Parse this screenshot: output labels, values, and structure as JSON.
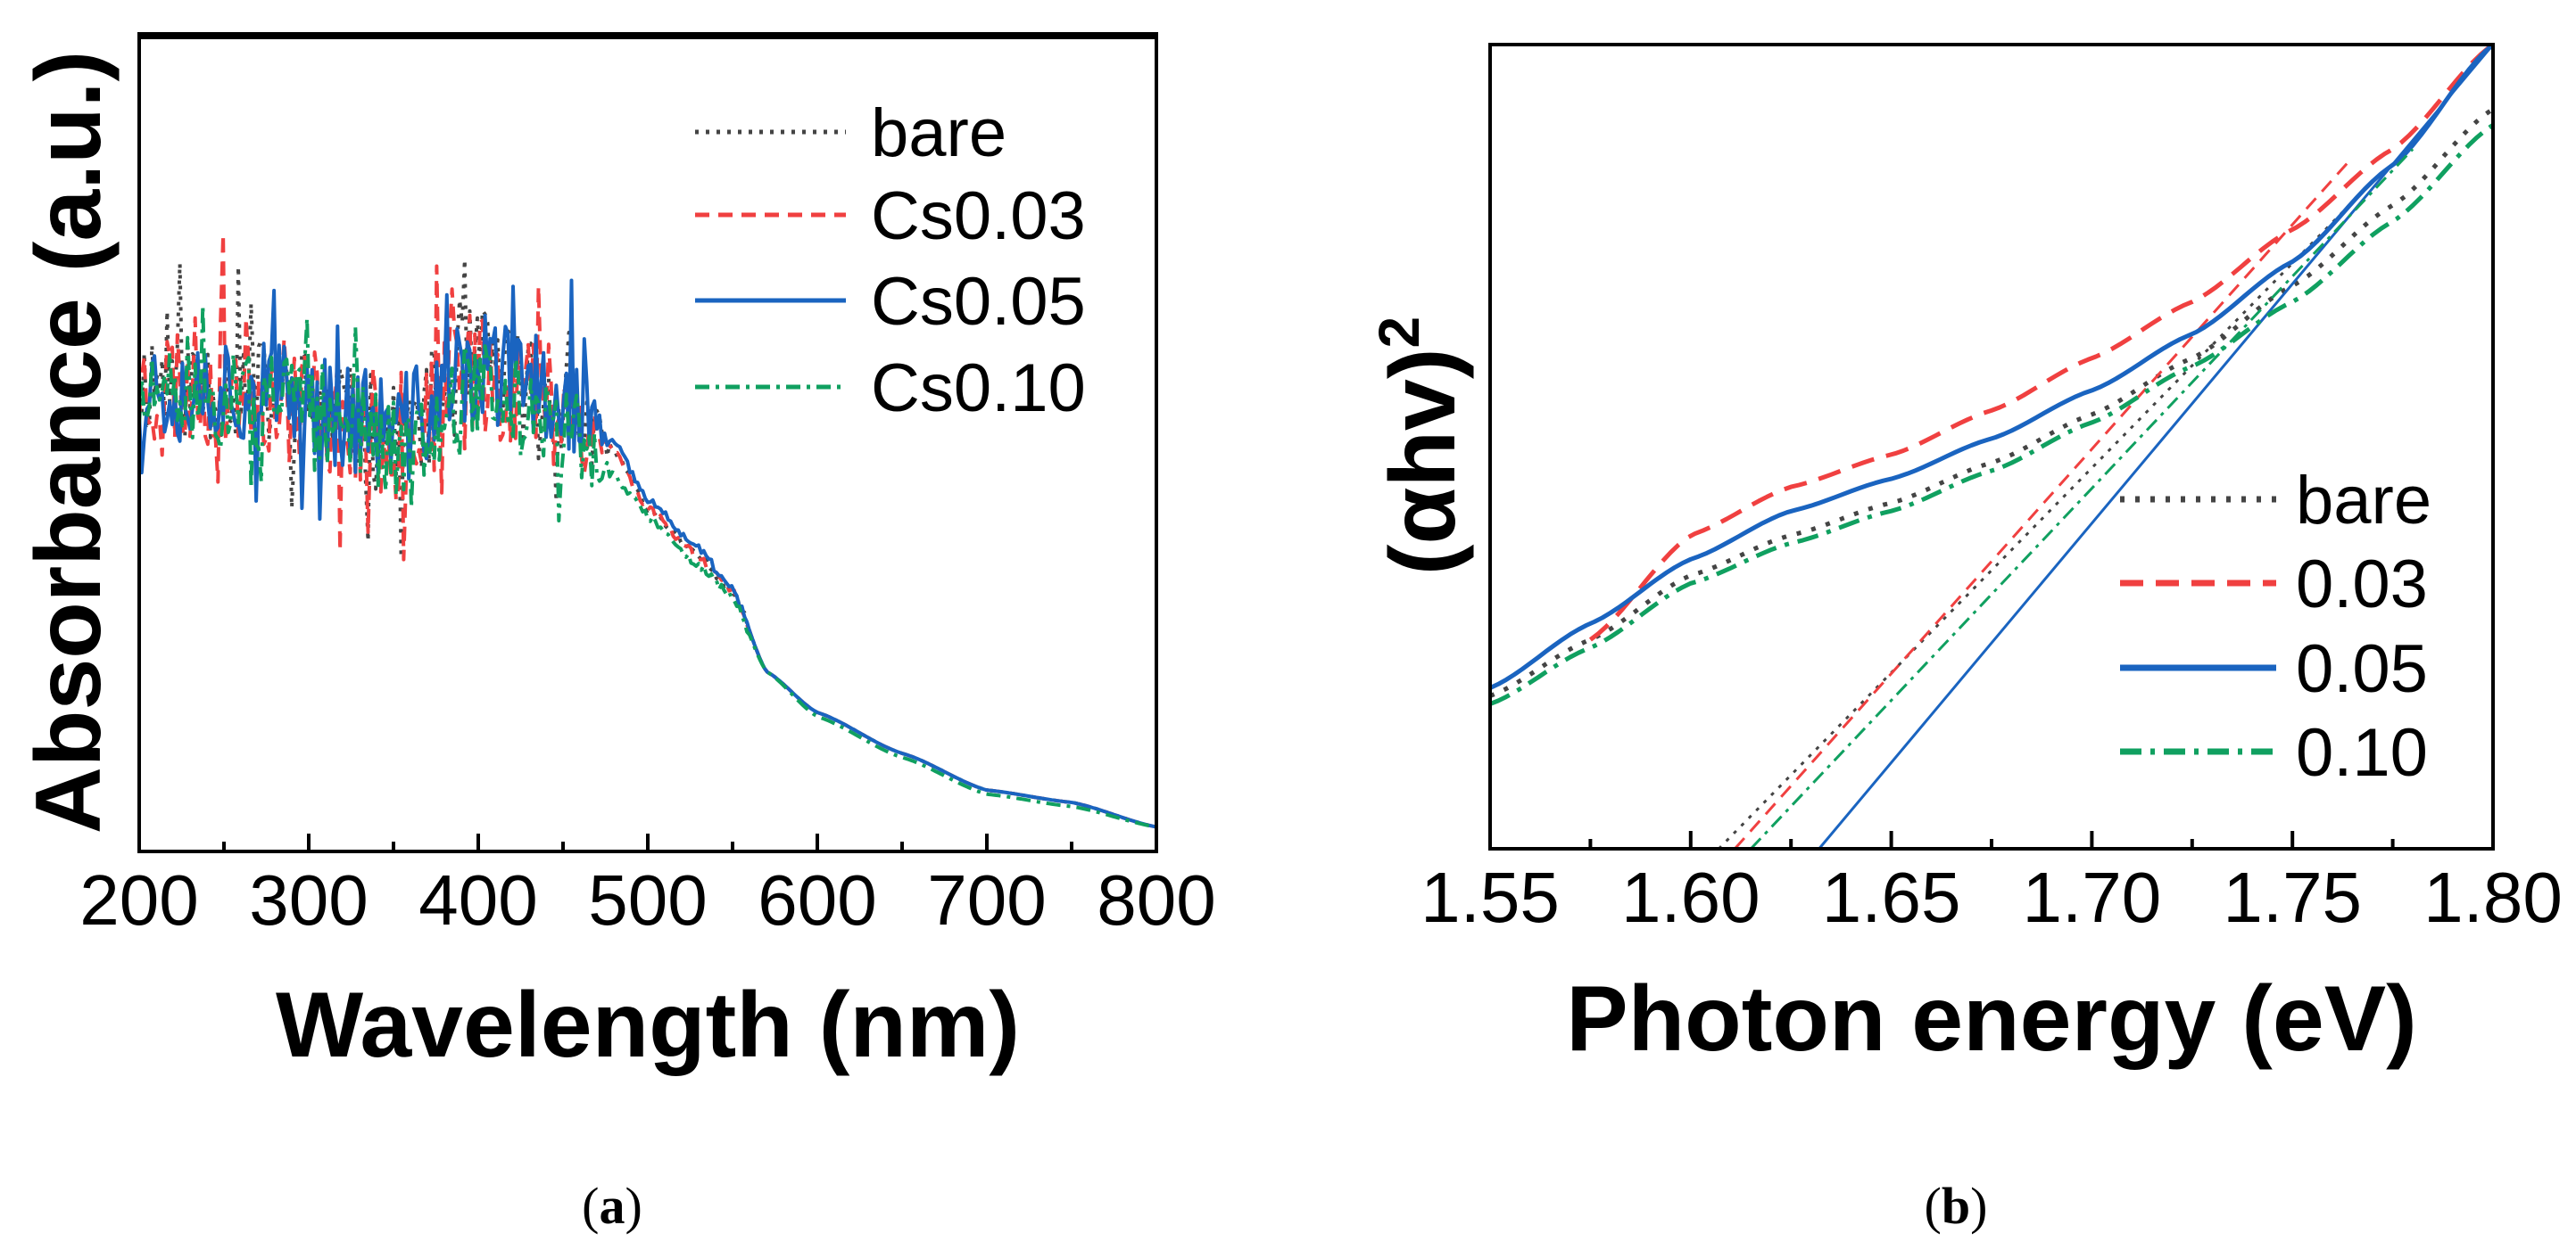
{
  "chart_data": [
    {
      "panel": "a",
      "caption_open": "(",
      "caption_letter": "a",
      "caption_close": ")",
      "type": "line",
      "xlabel": "Wavelength (nm)",
      "ylabel": "Absorbance (a.u.)",
      "xlim": [
        200,
        800
      ],
      "ylim": [
        0,
        1
      ],
      "xticks": [
        "200",
        "300",
        "400",
        "500",
        "600",
        "700",
        "800"
      ],
      "xtick_values": [
        200,
        300,
        400,
        500,
        600,
        700,
        800
      ],
      "minor_xticks": [
        250,
        350,
        450,
        550,
        650,
        750
      ],
      "yticks": [],
      "legend_position": "top-right",
      "noise_until": 480,
      "series": [
        {
          "name": "bare",
          "color": "#444444",
          "style": "dotted",
          "noise_amplitude": 0.07,
          "seed": 11,
          "points": [
            [
              200,
              0.58
            ],
            [
              250,
              0.57
            ],
            [
              300,
              0.55
            ],
            [
              330,
              0.52
            ],
            [
              350,
              0.5
            ],
            [
              400,
              0.6
            ],
            [
              450,
              0.55
            ],
            [
              480,
              0.49
            ],
            [
              500,
              0.42
            ],
            [
              530,
              0.36
            ],
            [
              550,
              0.32
            ],
            [
              570,
              0.22
            ],
            [
              600,
              0.17
            ],
            [
              650,
              0.12
            ],
            [
              700,
              0.075
            ],
            [
              750,
              0.06
            ],
            [
              800,
              0.03
            ]
          ]
        },
        {
          "name": "Cs0.03",
          "color": "#f04040",
          "style": "dashed",
          "noise_amplitude": 0.08,
          "seed": 23,
          "points": [
            [
              200,
              0.57
            ],
            [
              250,
              0.58
            ],
            [
              300,
              0.55
            ],
            [
              330,
              0.52
            ],
            [
              350,
              0.5
            ],
            [
              400,
              0.59
            ],
            [
              450,
              0.55
            ],
            [
              480,
              0.49
            ],
            [
              500,
              0.42
            ],
            [
              530,
              0.36
            ],
            [
              550,
              0.32
            ],
            [
              570,
              0.22
            ],
            [
              600,
              0.17
            ],
            [
              650,
              0.12
            ],
            [
              700,
              0.075
            ],
            [
              750,
              0.06
            ],
            [
              800,
              0.03
            ]
          ]
        },
        {
          "name": "Cs0.05",
          "color": "#1a64c0",
          "style": "solid",
          "noise_amplitude": 0.07,
          "seed": 37,
          "points": [
            [
              200,
              0.57
            ],
            [
              250,
              0.57
            ],
            [
              300,
              0.55
            ],
            [
              330,
              0.53
            ],
            [
              350,
              0.51
            ],
            [
              400,
              0.59
            ],
            [
              450,
              0.56
            ],
            [
              480,
              0.5
            ],
            [
              500,
              0.43
            ],
            [
              530,
              0.37
            ],
            [
              550,
              0.32
            ],
            [
              570,
              0.22
            ],
            [
              600,
              0.17
            ],
            [
              650,
              0.12
            ],
            [
              700,
              0.075
            ],
            [
              750,
              0.06
            ],
            [
              800,
              0.03
            ]
          ]
        },
        {
          "name": "Cs0.10",
          "color": "#10a060",
          "style": "dashdot",
          "noise_amplitude": 0.06,
          "seed": 51,
          "points": [
            [
              200,
              0.55
            ],
            [
              250,
              0.55
            ],
            [
              300,
              0.54
            ],
            [
              330,
              0.52
            ],
            [
              350,
              0.49
            ],
            [
              400,
              0.57
            ],
            [
              450,
              0.51
            ],
            [
              480,
              0.46
            ],
            [
              500,
              0.41
            ],
            [
              530,
              0.35
            ],
            [
              550,
              0.31
            ],
            [
              570,
              0.22
            ],
            [
              600,
              0.165
            ],
            [
              650,
              0.115
            ],
            [
              700,
              0.07
            ],
            [
              750,
              0.055
            ],
            [
              800,
              0.03
            ]
          ]
        }
      ]
    },
    {
      "panel": "b",
      "caption_open": "(",
      "caption_letter": "b",
      "caption_close": ")",
      "type": "line",
      "xlabel": "Photon energy (eV)",
      "ylabel": "(αhv)",
      "ylabel_superscript": "2",
      "xlim": [
        1.55,
        1.8
      ],
      "ylim": [
        0,
        1
      ],
      "xticks": [
        "1.55",
        "1.60",
        "1.65",
        "1.70",
        "1.75",
        "1.80"
      ],
      "xtick_values": [
        1.55,
        1.6,
        1.65,
        1.7,
        1.75,
        1.8
      ],
      "minor_xticks": [
        1.575,
        1.625,
        1.675,
        1.725,
        1.775
      ],
      "yticks": [],
      "legend_position": "bottom-right",
      "series": [
        {
          "name": "bare",
          "color": "#444444",
          "style": "dotted",
          "points": [
            [
              1.55,
              0.19
            ],
            [
              1.575,
              0.26
            ],
            [
              1.6,
              0.34
            ],
            [
              1.625,
              0.39
            ],
            [
              1.65,
              0.43
            ],
            [
              1.675,
              0.48
            ],
            [
              1.7,
              0.54
            ],
            [
              1.725,
              0.61
            ],
            [
              1.75,
              0.7
            ],
            [
              1.775,
              0.8
            ],
            [
              1.8,
              0.92
            ]
          ],
          "fit_line": [
            [
              1.607,
              0
            ],
            [
              1.77,
              0.83
            ]
          ]
        },
        {
          "name": "0.03",
          "color": "#f04040",
          "style": "dashed",
          "points": [
            [
              1.575,
              0.26
            ],
            [
              1.6,
              0.39
            ],
            [
              1.625,
              0.45
            ],
            [
              1.65,
              0.49
            ],
            [
              1.675,
              0.545
            ],
            [
              1.7,
              0.61
            ],
            [
              1.725,
              0.68
            ],
            [
              1.75,
              0.77
            ],
            [
              1.775,
              0.87
            ],
            [
              1.8,
              1.0
            ]
          ],
          "fit_line": [
            [
              1.611,
              0
            ],
            [
              1.765,
              0.86
            ]
          ]
        },
        {
          "name": "0.05",
          "color": "#1a64c0",
          "style": "solid",
          "points": [
            [
              1.55,
              0.2
            ],
            [
              1.575,
              0.28
            ],
            [
              1.6,
              0.36
            ],
            [
              1.625,
              0.42
            ],
            [
              1.65,
              0.46
            ],
            [
              1.675,
              0.51
            ],
            [
              1.7,
              0.57
            ],
            [
              1.725,
              0.64
            ],
            [
              1.75,
              0.73
            ],
            [
              1.775,
              0.85
            ],
            [
              1.8,
              1.0
            ]
          ],
          "fit_line": [
            [
              1.632,
              0
            ],
            [
              1.8,
              1.0
            ]
          ]
        },
        {
          "name": "0.10",
          "color": "#10a060",
          "style": "dashdot",
          "points": [
            [
              1.55,
              0.18
            ],
            [
              1.575,
              0.25
            ],
            [
              1.6,
              0.33
            ],
            [
              1.625,
              0.38
            ],
            [
              1.65,
              0.42
            ],
            [
              1.675,
              0.47
            ],
            [
              1.7,
              0.53
            ],
            [
              1.725,
              0.6
            ],
            [
              1.75,
              0.68
            ],
            [
              1.775,
              0.78
            ],
            [
              1.8,
              0.9
            ]
          ],
          "fit_line": [
            [
              1.615,
              0
            ],
            [
              1.78,
              0.87
            ]
          ]
        }
      ]
    }
  ]
}
